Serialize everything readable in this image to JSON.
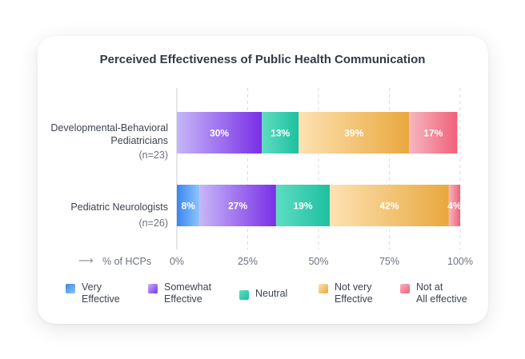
{
  "chart_data": {
    "type": "bar",
    "orientation": "horizontal",
    "stacked": true,
    "title": "Perceived Effectiveness of Public Health Communication",
    "xlabel": "% of HCPs",
    "xlim": [
      0,
      100
    ],
    "xticks": [
      "0%",
      "25%",
      "50%",
      "75%",
      "100%"
    ],
    "grid": true,
    "legend_position": "bottom",
    "categories": [
      {
        "label_lines": [
          "Developmental-Behavioral",
          "Pediatricians"
        ],
        "n": "(n=23)"
      },
      {
        "label_lines": [
          "Pediatric Neurologists"
        ],
        "n": "(n=26)"
      }
    ],
    "series": [
      {
        "name_lines": [
          "Very",
          "Effective"
        ],
        "color_start": "#3a86ee",
        "color_end": "#8fc4ff",
        "values": [
          0,
          8
        ],
        "labels": [
          "",
          "8%"
        ]
      },
      {
        "name_lines": [
          "Somewhat",
          "Effective"
        ],
        "color_start": "#c6b7f8",
        "color_end": "#7a2fe6",
        "values": [
          30,
          27
        ],
        "labels": [
          "30%",
          "27%"
        ]
      },
      {
        "name_lines": [
          "Neutral"
        ],
        "color_start": "#5fdcc2",
        "color_end": "#1dc0a1",
        "values": [
          13,
          19
        ],
        "labels": [
          "13%",
          "19%"
        ]
      },
      {
        "name_lines": [
          "Not very",
          "Effective"
        ],
        "color_start": "#fde2b2",
        "color_end": "#e9a83e",
        "values": [
          39,
          42
        ],
        "labels": [
          "39%",
          "42%"
        ]
      },
      {
        "name_lines": [
          "Not at",
          "All effective"
        ],
        "color_start": "#f5b7c0",
        "color_end": "#f0607a",
        "values": [
          17,
          4
        ],
        "labels": [
          "17%",
          "4%"
        ]
      }
    ]
  },
  "ui": {
    "axis_arrow": "⟶"
  }
}
